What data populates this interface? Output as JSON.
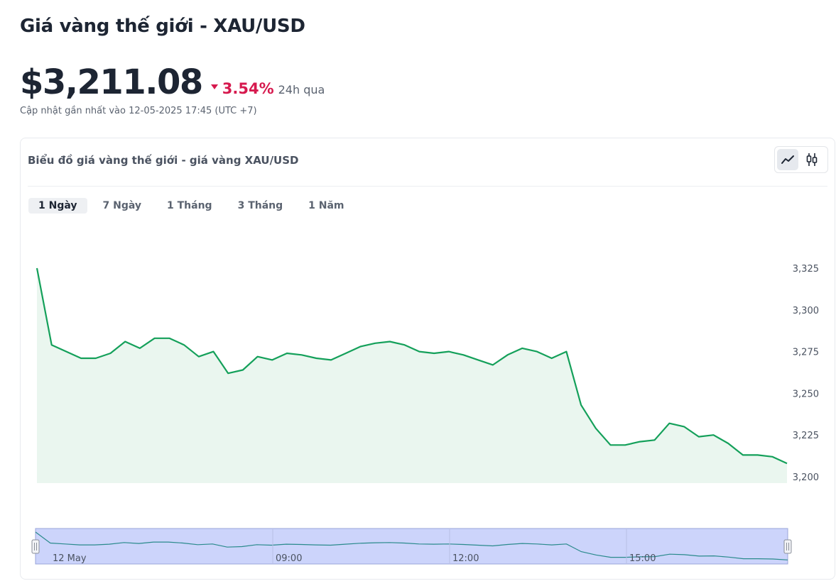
{
  "header": {
    "title": "Giá vàng thế giới - XAU/USD",
    "price": "$3,211.08",
    "change_pct": "3.54%",
    "change_period": "24h qua",
    "updated": "Cập nhật gần nhất vào 12-05-2025 17:45 (UTC +7)"
  },
  "card": {
    "title": "Biểu đồ giá vàng thế giới - giá vàng XAU/USD",
    "line_view_icon": "line-chart-icon",
    "candle_view_icon": "candlestick-icon",
    "tabs": [
      {
        "label": "1 Ngày",
        "active": true
      },
      {
        "label": "7 Ngày",
        "active": false
      },
      {
        "label": "1 Tháng",
        "active": false
      },
      {
        "label": "3 Tháng",
        "active": false
      },
      {
        "label": "1 Năm",
        "active": false
      }
    ]
  },
  "colors": {
    "line": "#14a05a",
    "area": "#eaf6ef",
    "navigator_fill": "#ccd4fb",
    "navigator_line": "#2a8a8c",
    "down": "#d6194e"
  },
  "chart_data": {
    "type": "area",
    "ylim": [
      3200,
      3325
    ],
    "y_ticks": [
      "3,200",
      "3,225",
      "3,250",
      "3,275",
      "3,300",
      "3,325"
    ],
    "y_tick_values": [
      3200,
      3225,
      3250,
      3275,
      3300,
      3325
    ],
    "navigator_labels": [
      "12 May",
      "09:00",
      "12:00",
      "15:00"
    ],
    "values": [
      3325,
      3279,
      3275,
      3271,
      3271,
      3274,
      3281,
      3277,
      3283,
      3283,
      3279,
      3272,
      3275,
      3262,
      3264,
      3272,
      3270,
      3274,
      3273,
      3271,
      3270,
      3274,
      3278,
      3280,
      3281,
      3279,
      3275,
      3274,
      3275,
      3273,
      3270,
      3267,
      3273,
      3277,
      3275,
      3271,
      3275,
      3243,
      3229,
      3219,
      3219,
      3221,
      3222,
      3232,
      3230,
      3224,
      3225,
      3220,
      3213,
      3213,
      3212,
      3208
    ]
  }
}
